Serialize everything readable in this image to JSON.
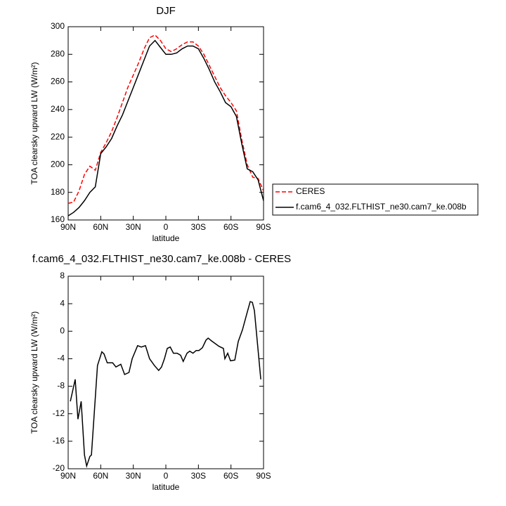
{
  "chart_data": [
    {
      "type": "line",
      "title": "DJF",
      "x_label": "latitude",
      "y_label": "TOA clearsky upward LW (W/m²)",
      "x": [
        90,
        85,
        80,
        75,
        70,
        65,
        60,
        55,
        50,
        45,
        40,
        35,
        30,
        25,
        20,
        15,
        10,
        5,
        0,
        -5,
        -10,
        -15,
        -20,
        -25,
        -30,
        -35,
        -40,
        -45,
        -50,
        -55,
        -60,
        -65,
        -70,
        -75,
        -80,
        -85,
        -90
      ],
      "series": [
        {
          "name": "CERES",
          "color": "#ff0000",
          "dashed": true,
          "values": [
            172,
            173,
            181,
            193,
            199,
            196,
            209,
            216,
            224,
            234,
            245,
            256,
            265,
            274,
            284,
            292,
            294,
            290,
            284,
            282,
            284,
            287,
            289,
            289,
            286,
            280,
            272,
            264,
            256,
            250,
            245,
            239,
            218,
            200,
            191,
            190,
            181
          ]
        },
        {
          "name": "f.cam6_4_032.FLTHIST_ne30.cam7_ke.008b",
          "color": "#000000",
          "dashed": false,
          "values": [
            163,
            165.5,
            169,
            174,
            180,
            184,
            208,
            213,
            219,
            228,
            236,
            246,
            256,
            266,
            276,
            286,
            290,
            285,
            280,
            280,
            281,
            284,
            286,
            286,
            284,
            277,
            269,
            260,
            253,
            245,
            242,
            235,
            215,
            197,
            195,
            189,
            174
          ]
        }
      ],
      "xlim": [
        90,
        -90
      ],
      "xticks": [
        {
          "value": 90,
          "label": "90N"
        },
        {
          "value": 60,
          "label": "60N"
        },
        {
          "value": 30,
          "label": "30N"
        },
        0,
        {
          "value": -30,
          "label": "30S"
        },
        {
          "value": -60,
          "label": "60S"
        },
        {
          "value": -90,
          "label": "90S"
        }
      ],
      "ylim": [
        160,
        300
      ],
      "yticks": [
        160,
        180,
        200,
        220,
        240,
        260,
        280,
        300
      ],
      "legend": "right"
    },
    {
      "type": "line",
      "title": "f.cam6_4_032.FLTHIST_ne30.cam7_ke.008b - CERES",
      "x_label": "latitude",
      "y_label": "TOA clearsky upward LW (W/m²)",
      "x": [
        88,
        83.5,
        81,
        78,
        75,
        73,
        70,
        68.6,
        63,
        59,
        57,
        54,
        49,
        46,
        41.5,
        38,
        34,
        31,
        26,
        22.6,
        18.8,
        15,
        10.5,
        6.6,
        4,
        1.3,
        -1.3,
        -4,
        -7,
        -10.4,
        -13.6,
        -16,
        -19.5,
        -22,
        -25,
        -28,
        -30.5,
        -33.7,
        -37,
        -39,
        -42,
        -49,
        -53,
        -54.4,
        -57,
        -59.6,
        -63.5,
        -66.7,
        -70.6,
        -74.5,
        -77.7,
        -79.7,
        -81.6,
        -87.5
      ],
      "values": [
        -10.2,
        -7,
        -12.8,
        -10.2,
        -18,
        -19.6,
        -18.2,
        -18,
        -5,
        -3,
        -3.3,
        -4.6,
        -4.6,
        -5.2,
        -4.8,
        -6.3,
        -6,
        -4,
        -2.1,
        -2.3,
        -2.1,
        -4,
        -5,
        -5.7,
        -5.2,
        -4,
        -2.5,
        -2.3,
        -3.2,
        -3.2,
        -3.5,
        -4.4,
        -3.2,
        -2.9,
        -3.2,
        -2.8,
        -2.8,
        -2.4,
        -1.3,
        -1,
        -1.4,
        -2.2,
        -2.5,
        -4,
        -3.2,
        -4.3,
        -4.2,
        -1.5,
        0.2,
        2.5,
        4.3,
        4.2,
        3,
        -7
      ],
      "color": "#000000",
      "xlim": [
        90,
        -90
      ],
      "xticks": [
        {
          "value": 90,
          "label": "90N"
        },
        {
          "value": 60,
          "label": "60N"
        },
        {
          "value": 30,
          "label": "30N"
        },
        0,
        {
          "value": -30,
          "label": "30S"
        },
        {
          "value": -60,
          "label": "60S"
        },
        {
          "value": -90,
          "label": "90S"
        }
      ],
      "ylim": [
        -20,
        8
      ],
      "yticks": [
        -20,
        -16,
        -12,
        -8,
        -4,
        0,
        4,
        8
      ]
    }
  ]
}
